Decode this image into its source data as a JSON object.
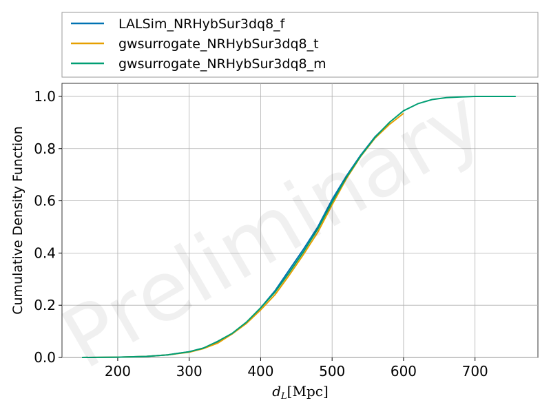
{
  "watermark": "Preliminary",
  "chart_data": {
    "type": "line",
    "title": "",
    "xlabel": "d_L [Mpc]",
    "xlabel_main": "d",
    "xlabel_sub": "L",
    "xlabel_unit": "[Mpc]",
    "ylabel": "Cumulative Density Function",
    "xlim": [
      122,
      788
    ],
    "ylim": [
      0.0,
      1.05
    ],
    "xticks": [
      200,
      300,
      400,
      500,
      600,
      700
    ],
    "xtick_labels": [
      "200",
      "300",
      "400",
      "500",
      "600",
      "700"
    ],
    "yticks": [
      0.0,
      0.2,
      0.4,
      0.6,
      0.8,
      1.0
    ],
    "ytick_labels": [
      "0.0",
      "0.2",
      "0.4",
      "0.6",
      "0.8",
      "1.0"
    ],
    "grid": true,
    "legend_position": "above plot",
    "series": [
      {
        "name": "LALSim_NRHybSur3dq8_f",
        "color": "#0072B2",
        "x": [
          150,
          200,
          240,
          270,
          300,
          320,
          340,
          360,
          380,
          400,
          420,
          440,
          460,
          480,
          500,
          520,
          540,
          560,
          580
        ],
        "y": [
          0.0,
          0.001,
          0.004,
          0.01,
          0.022,
          0.036,
          0.06,
          0.09,
          0.132,
          0.19,
          0.255,
          0.335,
          0.415,
          0.5,
          0.605,
          0.695,
          0.775,
          0.845,
          0.898
        ]
      },
      {
        "name": "gwsurrogate_NRHybSur3dq8_t",
        "color": "#E69F00",
        "x": [
          150,
          200,
          240,
          270,
          300,
          320,
          340,
          360,
          380,
          400,
          420,
          440,
          460,
          480,
          500,
          520,
          540,
          560,
          580,
          600
        ],
        "y": [
          0.0,
          0.001,
          0.004,
          0.01,
          0.02,
          0.034,
          0.055,
          0.09,
          0.13,
          0.182,
          0.24,
          0.315,
          0.395,
          0.48,
          0.585,
          0.685,
          0.77,
          0.84,
          0.892,
          0.935
        ]
      },
      {
        "name": "gwsurrogate_NRHybSur3dq8_m",
        "color": "#009E73",
        "x": [
          150,
          200,
          240,
          270,
          300,
          320,
          340,
          360,
          380,
          400,
          420,
          440,
          460,
          480,
          500,
          520,
          540,
          560,
          580,
          600,
          620,
          640,
          660,
          680,
          700,
          720,
          757
        ],
        "y": [
          0.0,
          0.001,
          0.004,
          0.01,
          0.022,
          0.036,
          0.062,
          0.092,
          0.135,
          0.19,
          0.25,
          0.325,
          0.405,
          0.492,
          0.595,
          0.69,
          0.772,
          0.843,
          0.9,
          0.945,
          0.972,
          0.988,
          0.995,
          0.998,
          1.0,
          1.0,
          1.0
        ]
      }
    ]
  }
}
